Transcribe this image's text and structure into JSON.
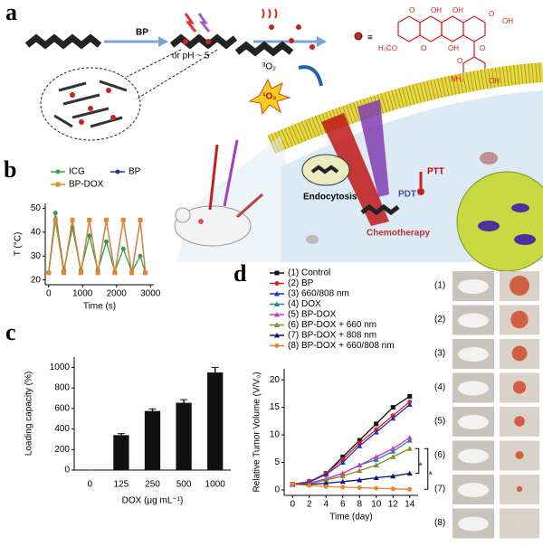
{
  "panel_labels": [
    "a",
    "b",
    "c",
    "d"
  ],
  "diagram": {
    "material": "BP",
    "condition": "or pH ~ 5",
    "oxygen": "³O₂",
    "singlet_oxygen": "¹O₂",
    "equiv": "≡",
    "structure": [
      "O",
      "OH",
      "OH",
      "O",
      "OH",
      "H₃CO",
      "O",
      "OH",
      "O",
      "NH₂",
      "OH",
      "O"
    ],
    "ptt": "PTT",
    "pdt": "PDT",
    "endocytosis": "Endocytosis",
    "chemotherapy": "Chemotherapy"
  },
  "chart_data": [
    {
      "type": "line",
      "x_label": "Time (s)",
      "y_label": "T (°C)",
      "x": [
        0,
        200,
        450,
        700,
        950,
        1200,
        1450,
        1700,
        1950,
        2200,
        2450,
        2700,
        2850
      ],
      "series": [
        {
          "name": "ICG",
          "color": "#2e9e4f",
          "marker": "circle",
          "values": [
            23,
            48,
            24,
            42,
            24,
            38.5,
            24,
            36,
            23.5,
            33,
            23.5,
            30,
            23
          ]
        },
        {
          "name": "BP",
          "color": "#2b3a8c",
          "marker": "circle",
          "values": [
            23,
            45,
            23,
            45,
            23,
            45,
            23,
            45,
            23,
            45,
            23,
            45,
            23
          ]
        },
        {
          "name": "BP-DOX",
          "color": "#e8862a",
          "marker": "square",
          "values": [
            23,
            45,
            23,
            45,
            23,
            45,
            23,
            45,
            23,
            45,
            23,
            45,
            23
          ]
        }
      ],
      "xlim": [
        -100,
        3100
      ],
      "xticks": [
        0,
        1000,
        2000,
        3000
      ],
      "ylim": [
        18,
        52
      ],
      "yticks": [
        20,
        30,
        40,
        50
      ]
    },
    {
      "type": "bar",
      "x_label": "DOX (μg mL⁻¹)",
      "y_label": "Loading capacity (%)",
      "categories": [
        "0",
        "125",
        "250",
        "500",
        "1000"
      ],
      "values": [
        0,
        340,
        575,
        655,
        950
      ],
      "errors": [
        0,
        15,
        20,
        30,
        50
      ],
      "color": "#111111",
      "ylim": [
        0,
        1100
      ],
      "yticks": [
        0,
        200,
        400,
        600,
        800,
        1000
      ]
    },
    {
      "type": "line",
      "x_label": "Time (day)",
      "y_label": "Relative Tumor Volume (V/V₀)",
      "annotations": [
        "*",
        "*"
      ],
      "x": [
        0,
        2,
        4,
        6,
        8,
        10,
        12,
        14
      ],
      "series": [
        {
          "name": "(1) Control",
          "color": "#111111",
          "marker": "square",
          "values": [
            1,
            1.5,
            3,
            6,
            9,
            12,
            15,
            17
          ]
        },
        {
          "name": "(2) BP",
          "color": "#e02020",
          "marker": "circle",
          "values": [
            1,
            1.5,
            3,
            5.5,
            8.5,
            11,
            13.5,
            16
          ]
        },
        {
          "name": "(3) 660/808 nm",
          "color": "#2030c0",
          "marker": "triangle",
          "values": [
            1,
            1.4,
            2.8,
            5,
            8,
            10.5,
            13,
            15.5
          ]
        },
        {
          "name": "(4) DOX",
          "color": "#1a8a8a",
          "marker": "triangle",
          "values": [
            1,
            1.2,
            2,
            3,
            4.5,
            5.5,
            7,
            9
          ]
        },
        {
          "name": "(5) BP-DOX",
          "color": "#d030d0",
          "marker": "triangle",
          "values": [
            1,
            1.2,
            2,
            3,
            4.5,
            6,
            7.5,
            9.5
          ]
        },
        {
          "name": "(6) BP-DOX + 660 nm",
          "color": "#8a8a20",
          "marker": "triangle",
          "values": [
            1,
            1.1,
            1.8,
            2.5,
            3.5,
            4.5,
            6,
            7.5
          ]
        },
        {
          "name": "(7) BP-DOX + 808 nm",
          "color": "#101080",
          "marker": "triangle",
          "values": [
            1,
            1,
            1.2,
            1.5,
            1.8,
            2.2,
            2.5,
            3
          ]
        },
        {
          "name": "(8) BP-DOX + 660/808 nm",
          "color": "#e8862a",
          "marker": "circle",
          "values": [
            1,
            0.8,
            0.6,
            0.5,
            0.4,
            0.3,
            0.2,
            0.1
          ]
        }
      ],
      "xlim": [
        -1,
        15
      ],
      "xticks": [
        0,
        2,
        4,
        6,
        8,
        10,
        12,
        14
      ],
      "ylim": [
        -1,
        22
      ],
      "yticks": [
        0,
        5,
        10,
        15,
        20
      ]
    }
  ],
  "photos": {
    "labels": [
      "(1)",
      "(2)",
      "(3)",
      "(4)",
      "(5)",
      "(6)",
      "(7)",
      "(8)"
    ]
  }
}
